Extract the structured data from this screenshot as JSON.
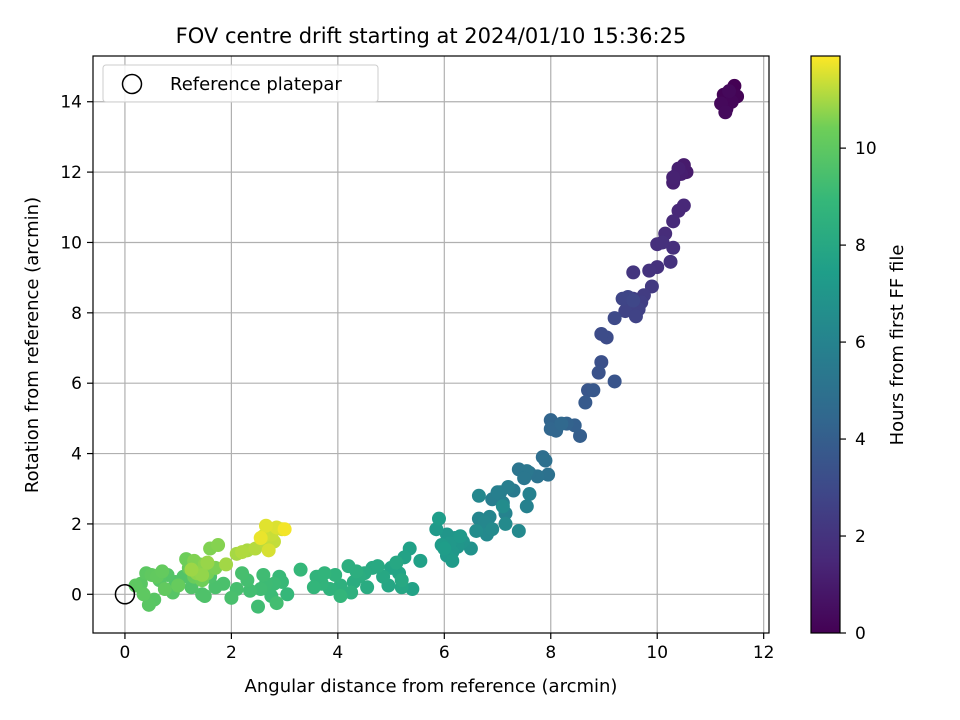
{
  "chart_data": {
    "type": "scatter",
    "title": "FOV centre drift starting at 2024/01/10 15:36:25",
    "xlabel": "Angular distance from reference (arcmin)",
    "ylabel": "Rotation from reference (arcmin)",
    "xlim": [
      -0.6,
      12.1
    ],
    "ylim": [
      -1.1,
      15.3
    ],
    "xticks": [
      0,
      2,
      4,
      6,
      8,
      10,
      12
    ],
    "yticks": [
      0,
      2,
      4,
      6,
      8,
      10,
      12,
      14
    ],
    "grid": true,
    "legend": {
      "position": "top-left",
      "entries": [
        "Reference platepar"
      ]
    },
    "reference_point": {
      "x": 0,
      "y": 0
    },
    "colorbar": {
      "label": "Hours from first FF file",
      "colormap": "viridis",
      "range": [
        0,
        11.9
      ],
      "ticks": [
        0,
        2,
        4,
        6,
        8,
        10
      ]
    },
    "points": [
      {
        "x": 11.45,
        "y": 14.45,
        "c": 0.0
      },
      {
        "x": 11.25,
        "y": 14.2,
        "c": 0.1
      },
      {
        "x": 11.5,
        "y": 14.15,
        "c": 0.1
      },
      {
        "x": 11.4,
        "y": 14.0,
        "c": 0.2
      },
      {
        "x": 11.3,
        "y": 13.8,
        "c": 0.2
      },
      {
        "x": 11.2,
        "y": 13.95,
        "c": 0.3
      },
      {
        "x": 11.35,
        "y": 14.3,
        "c": 0.3
      },
      {
        "x": 11.28,
        "y": 13.7,
        "c": 0.35
      },
      {
        "x": 10.55,
        "y": 12.0,
        "c": 1.0
      },
      {
        "x": 10.5,
        "y": 12.2,
        "c": 1.0
      },
      {
        "x": 10.35,
        "y": 11.9,
        "c": 1.1
      },
      {
        "x": 10.45,
        "y": 11.95,
        "c": 1.1
      },
      {
        "x": 10.3,
        "y": 11.7,
        "c": 1.2
      },
      {
        "x": 10.4,
        "y": 12.1,
        "c": 1.2
      },
      {
        "x": 10.3,
        "y": 11.85,
        "c": 1.25
      },
      {
        "x": 10.5,
        "y": 11.05,
        "c": 1.5
      },
      {
        "x": 10.4,
        "y": 10.9,
        "c": 1.5
      },
      {
        "x": 10.3,
        "y": 10.6,
        "c": 1.6
      },
      {
        "x": 10.15,
        "y": 10.25,
        "c": 1.7
      },
      {
        "x": 10.0,
        "y": 9.95,
        "c": 1.8
      },
      {
        "x": 10.3,
        "y": 9.85,
        "c": 1.8
      },
      {
        "x": 10.1,
        "y": 10.0,
        "c": 1.85
      },
      {
        "x": 10.0,
        "y": 9.3,
        "c": 1.9
      },
      {
        "x": 10.25,
        "y": 9.45,
        "c": 1.9
      },
      {
        "x": 9.85,
        "y": 9.2,
        "c": 2.0
      },
      {
        "x": 9.55,
        "y": 9.15,
        "c": 2.1
      },
      {
        "x": 9.9,
        "y": 8.75,
        "c": 2.3
      },
      {
        "x": 9.75,
        "y": 8.5,
        "c": 2.4
      },
      {
        "x": 9.7,
        "y": 8.3,
        "c": 2.5
      },
      {
        "x": 9.55,
        "y": 8.4,
        "c": 2.5
      },
      {
        "x": 9.5,
        "y": 8.2,
        "c": 2.6
      },
      {
        "x": 9.65,
        "y": 8.1,
        "c": 2.6
      },
      {
        "x": 9.4,
        "y": 8.05,
        "c": 2.7
      },
      {
        "x": 9.6,
        "y": 7.9,
        "c": 2.7
      },
      {
        "x": 9.45,
        "y": 8.45,
        "c": 2.8
      },
      {
        "x": 9.35,
        "y": 8.4,
        "c": 2.8
      },
      {
        "x": 9.55,
        "y": 8.35,
        "c": 2.9
      },
      {
        "x": 9.2,
        "y": 7.85,
        "c": 3.0
      },
      {
        "x": 9.05,
        "y": 7.3,
        "c": 3.1
      },
      {
        "x": 8.95,
        "y": 7.4,
        "c": 3.1
      },
      {
        "x": 8.95,
        "y": 6.6,
        "c": 3.3
      },
      {
        "x": 8.9,
        "y": 6.3,
        "c": 3.4
      },
      {
        "x": 9.2,
        "y": 6.05,
        "c": 3.5
      },
      {
        "x": 8.7,
        "y": 5.8,
        "c": 3.6
      },
      {
        "x": 8.8,
        "y": 5.8,
        "c": 3.7
      },
      {
        "x": 8.65,
        "y": 5.45,
        "c": 3.8
      },
      {
        "x": 8.55,
        "y": 4.5,
        "c": 4.0
      },
      {
        "x": 8.45,
        "y": 4.8,
        "c": 4.1
      },
      {
        "x": 8.3,
        "y": 4.85,
        "c": 4.2
      },
      {
        "x": 8.0,
        "y": 4.95,
        "c": 4.3
      },
      {
        "x": 8.0,
        "y": 4.7,
        "c": 4.4
      },
      {
        "x": 8.1,
        "y": 4.65,
        "c": 4.4
      },
      {
        "x": 8.2,
        "y": 4.85,
        "c": 4.5
      },
      {
        "x": 7.85,
        "y": 3.9,
        "c": 4.8
      },
      {
        "x": 7.9,
        "y": 3.8,
        "c": 4.9
      },
      {
        "x": 7.95,
        "y": 3.4,
        "c": 5.0
      },
      {
        "x": 7.75,
        "y": 3.35,
        "c": 5.1
      },
      {
        "x": 7.6,
        "y": 3.45,
        "c": 5.1
      },
      {
        "x": 7.4,
        "y": 3.55,
        "c": 5.2
      },
      {
        "x": 7.55,
        "y": 3.5,
        "c": 5.3
      },
      {
        "x": 7.5,
        "y": 3.3,
        "c": 5.3
      },
      {
        "x": 7.3,
        "y": 2.95,
        "c": 5.5
      },
      {
        "x": 7.05,
        "y": 2.9,
        "c": 5.6
      },
      {
        "x": 6.9,
        "y": 2.7,
        "c": 5.7
      },
      {
        "x": 7.2,
        "y": 3.05,
        "c": 5.7
      },
      {
        "x": 7.1,
        "y": 2.6,
        "c": 5.8
      },
      {
        "x": 7.0,
        "y": 2.9,
        "c": 5.8
      },
      {
        "x": 7.55,
        "y": 2.5,
        "c": 5.9
      },
      {
        "x": 7.6,
        "y": 2.85,
        "c": 5.9
      },
      {
        "x": 7.15,
        "y": 2.3,
        "c": 6.0
      },
      {
        "x": 6.85,
        "y": 2.2,
        "c": 6.1
      },
      {
        "x": 6.65,
        "y": 2.15,
        "c": 6.1
      },
      {
        "x": 6.75,
        "y": 2.05,
        "c": 6.2
      },
      {
        "x": 6.65,
        "y": 2.8,
        "c": 6.2
      },
      {
        "x": 6.8,
        "y": 1.7,
        "c": 6.3
      },
      {
        "x": 7.4,
        "y": 1.8,
        "c": 6.3
      },
      {
        "x": 6.9,
        "y": 1.85,
        "c": 6.4
      },
      {
        "x": 7.15,
        "y": 2.0,
        "c": 6.4
      },
      {
        "x": 6.6,
        "y": 1.8,
        "c": 6.5
      },
      {
        "x": 7.1,
        "y": 2.5,
        "c": 6.5
      },
      {
        "x": 6.5,
        "y": 1.3,
        "c": 6.8
      },
      {
        "x": 6.2,
        "y": 1.6,
        "c": 6.9
      },
      {
        "x": 6.35,
        "y": 1.5,
        "c": 6.9
      },
      {
        "x": 6.05,
        "y": 1.7,
        "c": 7.0
      },
      {
        "x": 6.25,
        "y": 1.35,
        "c": 7.0
      },
      {
        "x": 6.15,
        "y": 1.2,
        "c": 7.1
      },
      {
        "x": 6.1,
        "y": 1.45,
        "c": 7.1
      },
      {
        "x": 6.3,
        "y": 1.65,
        "c": 7.15
      },
      {
        "x": 6.05,
        "y": 1.1,
        "c": 7.2
      },
      {
        "x": 5.85,
        "y": 1.85,
        "c": 7.2
      },
      {
        "x": 6.15,
        "y": 0.95,
        "c": 7.3
      },
      {
        "x": 5.95,
        "y": 1.4,
        "c": 7.3
      },
      {
        "x": 5.9,
        "y": 2.15,
        "c": 7.4
      },
      {
        "x": 6.0,
        "y": 1.3,
        "c": 7.4
      },
      {
        "x": 5.55,
        "y": 0.95,
        "c": 7.6
      },
      {
        "x": 5.35,
        "y": 1.3,
        "c": 7.6
      },
      {
        "x": 5.25,
        "y": 1.05,
        "c": 7.7
      },
      {
        "x": 5.4,
        "y": 0.15,
        "c": 7.7
      },
      {
        "x": 5.15,
        "y": 0.6,
        "c": 7.8
      },
      {
        "x": 5.0,
        "y": 0.75,
        "c": 7.8
      },
      {
        "x": 5.2,
        "y": 0.2,
        "c": 7.9
      },
      {
        "x": 4.95,
        "y": 0.25,
        "c": 7.9
      },
      {
        "x": 5.1,
        "y": 0.9,
        "c": 8.0
      },
      {
        "x": 4.85,
        "y": 0.5,
        "c": 8.0
      },
      {
        "x": 5.2,
        "y": 0.4,
        "c": 8.05
      },
      {
        "x": 4.65,
        "y": 0.75,
        "c": 8.1
      },
      {
        "x": 4.75,
        "y": 0.8,
        "c": 8.1
      },
      {
        "x": 4.5,
        "y": 0.6,
        "c": 8.2
      },
      {
        "x": 4.55,
        "y": 0.2,
        "c": 8.2
      },
      {
        "x": 4.4,
        "y": 0.5,
        "c": 8.3
      },
      {
        "x": 4.3,
        "y": 0.35,
        "c": 8.3
      },
      {
        "x": 4.2,
        "y": 0.8,
        "c": 8.4
      },
      {
        "x": 4.35,
        "y": 0.65,
        "c": 8.4
      },
      {
        "x": 4.05,
        "y": 0.25,
        "c": 8.5
      },
      {
        "x": 4.25,
        "y": 0.05,
        "c": 8.5
      },
      {
        "x": 3.95,
        "y": 0.55,
        "c": 8.6
      },
      {
        "x": 3.85,
        "y": 0.15,
        "c": 8.6
      },
      {
        "x": 3.7,
        "y": 0.3,
        "c": 8.7
      },
      {
        "x": 3.6,
        "y": 0.5,
        "c": 8.7
      },
      {
        "x": 3.75,
        "y": 0.6,
        "c": 8.75
      },
      {
        "x": 3.55,
        "y": 0.2,
        "c": 8.8
      },
      {
        "x": 4.05,
        "y": -0.05,
        "c": 8.8
      },
      {
        "x": 3.3,
        "y": 0.7,
        "c": 8.9
      },
      {
        "x": 3.05,
        "y": 0.0,
        "c": 8.9
      },
      {
        "x": 2.95,
        "y": 0.35,
        "c": 9.0
      },
      {
        "x": 2.9,
        "y": 0.5,
        "c": 9.0
      },
      {
        "x": 2.8,
        "y": 0.3,
        "c": 9.1
      },
      {
        "x": 2.75,
        "y": -0.05,
        "c": 9.1
      },
      {
        "x": 2.65,
        "y": 0.3,
        "c": 9.15
      },
      {
        "x": 2.6,
        "y": 0.55,
        "c": 9.2
      },
      {
        "x": 2.55,
        "y": 0.15,
        "c": 9.2
      },
      {
        "x": 2.5,
        "y": -0.35,
        "c": 9.25
      },
      {
        "x": 2.85,
        "y": -0.25,
        "c": 9.3
      },
      {
        "x": 2.35,
        "y": 0.1,
        "c": 9.3
      },
      {
        "x": 2.3,
        "y": 0.4,
        "c": 9.35
      },
      {
        "x": 2.2,
        "y": 0.6,
        "c": 9.4
      },
      {
        "x": 2.1,
        "y": 0.15,
        "c": 9.4
      },
      {
        "x": 2.0,
        "y": -0.1,
        "c": 9.45
      },
      {
        "x": 1.85,
        "y": 0.3,
        "c": 9.5
      },
      {
        "x": 1.7,
        "y": 0.2,
        "c": 9.5
      },
      {
        "x": 1.6,
        "y": 0.5,
        "c": 9.55
      },
      {
        "x": 1.45,
        "y": 0.0,
        "c": 9.6
      },
      {
        "x": 1.5,
        "y": -0.05,
        "c": 9.6
      },
      {
        "x": 1.25,
        "y": 0.2,
        "c": 9.65
      },
      {
        "x": 1.1,
        "y": 0.5,
        "c": 9.7
      },
      {
        "x": 0.95,
        "y": 0.35,
        "c": 9.7
      },
      {
        "x": 0.8,
        "y": 0.55,
        "c": 9.75
      },
      {
        "x": 0.9,
        "y": 0.05,
        "c": 9.8
      },
      {
        "x": 0.65,
        "y": 0.4,
        "c": 9.8
      },
      {
        "x": 0.55,
        "y": -0.15,
        "c": 9.85
      },
      {
        "x": 0.45,
        "y": -0.3,
        "c": 9.9
      },
      {
        "x": 0.3,
        "y": 0.3,
        "c": 9.9
      },
      {
        "x": 0.4,
        "y": 0.6,
        "c": 9.95
      },
      {
        "x": 0.2,
        "y": 0.25,
        "c": 10.0
      },
      {
        "x": 0.35,
        "y": 0.0,
        "c": 10.0
      },
      {
        "x": 0.5,
        "y": 0.55,
        "c": 10.05
      },
      {
        "x": 0.6,
        "y": 0.5,
        "c": 10.1
      },
      {
        "x": 0.75,
        "y": 0.15,
        "c": 10.1
      },
      {
        "x": 0.7,
        "y": 0.65,
        "c": 10.15
      },
      {
        "x": 1.0,
        "y": 0.25,
        "c": 10.2
      },
      {
        "x": 1.2,
        "y": 0.75,
        "c": 10.25
      },
      {
        "x": 1.3,
        "y": 0.5,
        "c": 10.3
      },
      {
        "x": 1.15,
        "y": 1.0,
        "c": 10.35
      },
      {
        "x": 1.45,
        "y": 0.4,
        "c": 10.4
      },
      {
        "x": 1.4,
        "y": 0.85,
        "c": 10.45
      },
      {
        "x": 1.55,
        "y": 0.6,
        "c": 10.5
      },
      {
        "x": 1.7,
        "y": 0.75,
        "c": 10.55
      },
      {
        "x": 1.3,
        "y": 0.95,
        "c": 10.6
      },
      {
        "x": 1.6,
        "y": 1.3,
        "c": 10.6
      },
      {
        "x": 1.75,
        "y": 1.4,
        "c": 10.65
      },
      {
        "x": 1.5,
        "y": 0.85,
        "c": 10.7
      },
      {
        "x": 1.35,
        "y": 0.6,
        "c": 10.75
      },
      {
        "x": 1.45,
        "y": 0.55,
        "c": 10.8
      },
      {
        "x": 1.55,
        "y": 0.9,
        "c": 10.85
      },
      {
        "x": 1.25,
        "y": 0.7,
        "c": 10.9
      },
      {
        "x": 1.9,
        "y": 0.85,
        "c": 10.95
      },
      {
        "x": 2.1,
        "y": 1.15,
        "c": 11.0
      },
      {
        "x": 2.3,
        "y": 1.25,
        "c": 11.05
      },
      {
        "x": 2.2,
        "y": 1.2,
        "c": 11.1
      },
      {
        "x": 2.45,
        "y": 1.3,
        "c": 11.15
      },
      {
        "x": 2.65,
        "y": 1.45,
        "c": 11.2
      },
      {
        "x": 2.8,
        "y": 1.5,
        "c": 11.3
      },
      {
        "x": 2.75,
        "y": 1.7,
        "c": 11.35
      },
      {
        "x": 2.6,
        "y": 1.65,
        "c": 11.4
      },
      {
        "x": 2.95,
        "y": 1.85,
        "c": 11.45
      },
      {
        "x": 2.7,
        "y": 1.25,
        "c": 11.5
      },
      {
        "x": 2.85,
        "y": 1.9,
        "c": 11.55
      },
      {
        "x": 2.65,
        "y": 1.95,
        "c": 11.6
      },
      {
        "x": 2.55,
        "y": 1.6,
        "c": 11.7
      },
      {
        "x": 3.0,
        "y": 1.85,
        "c": 11.8
      }
    ]
  }
}
